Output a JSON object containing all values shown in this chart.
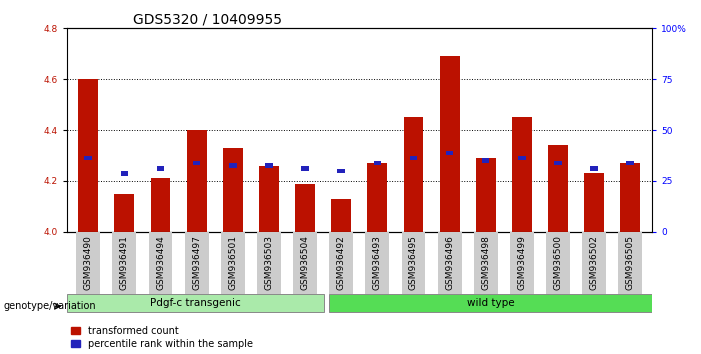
{
  "title": "GDS5320 / 10409955",
  "categories": [
    "GSM936490",
    "GSM936491",
    "GSM936494",
    "GSM936497",
    "GSM936501",
    "GSM936503",
    "GSM936504",
    "GSM936492",
    "GSM936493",
    "GSM936495",
    "GSM936496",
    "GSM936498",
    "GSM936499",
    "GSM936500",
    "GSM936502",
    "GSM936505"
  ],
  "red_values": [
    4.6,
    4.15,
    4.21,
    4.4,
    4.33,
    4.26,
    4.19,
    4.13,
    4.27,
    4.45,
    4.69,
    4.29,
    4.45,
    4.34,
    4.23,
    4.27
  ],
  "blue_values": [
    4.29,
    4.23,
    4.25,
    4.27,
    4.26,
    4.26,
    4.25,
    4.24,
    4.27,
    4.29,
    4.31,
    4.28,
    4.29,
    4.27,
    4.25,
    4.27
  ],
  "ylim_left": [
    4.0,
    4.8
  ],
  "ylim_right": [
    0,
    100
  ],
  "yticks_left": [
    4.0,
    4.2,
    4.4,
    4.6,
    4.8
  ],
  "yticks_right": [
    0,
    25,
    50,
    75,
    100
  ],
  "ytick_labels_right": [
    "0",
    "25",
    "50",
    "75",
    "100%"
  ],
  "group1_label": "Pdgf-c transgenic",
  "group2_label": "wild type",
  "group1_count": 7,
  "group2_count": 9,
  "genotype_label": "genotype/variation",
  "legend_red": "transformed count",
  "legend_blue": "percentile rank within the sample",
  "bar_color": "#bb1100",
  "blue_color": "#2222bb",
  "group1_color": "#aaeaaa",
  "group2_color": "#55dd55",
  "background_color": "#ffffff",
  "bar_width": 0.55,
  "title_fontsize": 10,
  "tick_fontsize": 6.5,
  "label_fontsize": 7.5
}
